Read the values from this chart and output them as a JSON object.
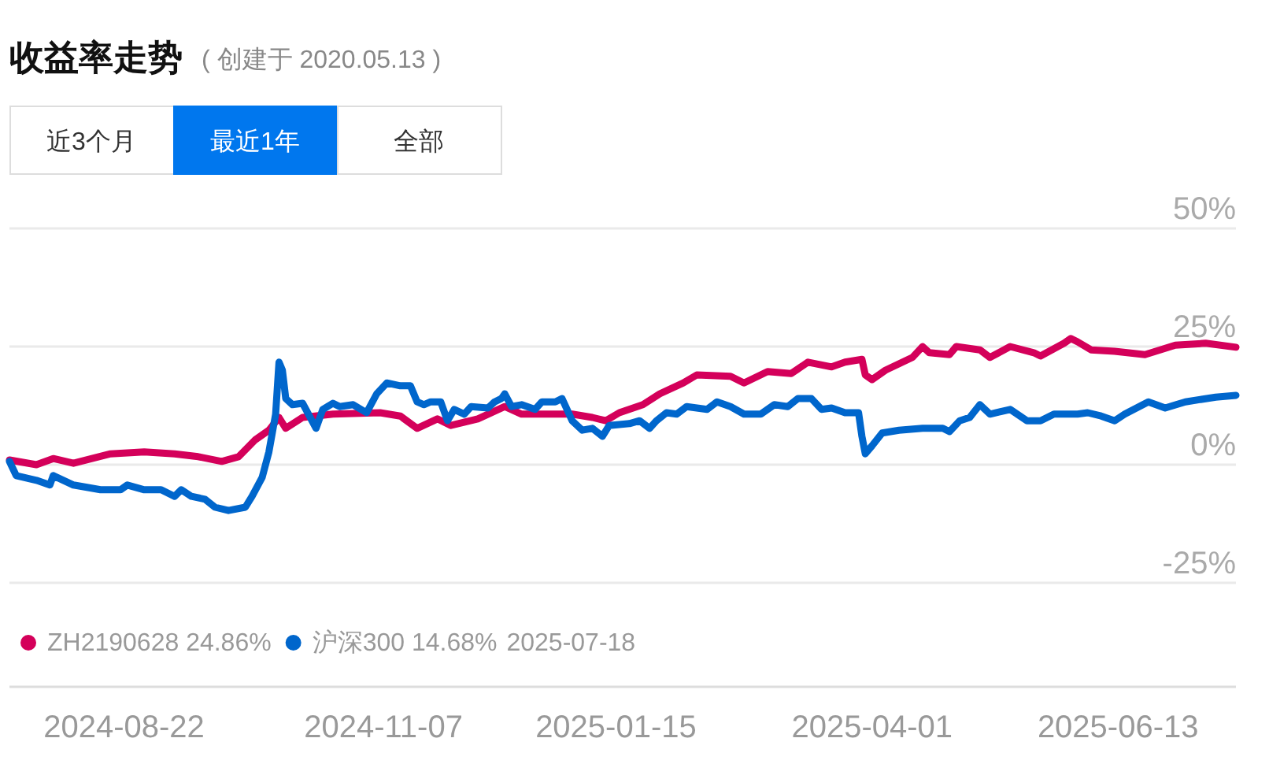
{
  "chart_data": {
    "type": "line",
    "title": "收益率走势",
    "subtitle": "( 创建于 2020.05.13 )",
    "annotations": [
      "近3个月",
      "最近1年",
      "全部",
      "2025-07-18"
    ],
    "xlim": [
      "2024-07-19",
      "2025-07-18"
    ],
    "xticks": [
      "2024-08-22",
      "2024-11-07",
      "2025-01-15",
      "2025-04-01",
      "2025-06-13"
    ],
    "ylim": [
      -25,
      50
    ],
    "yticks": [
      {
        "value": 50,
        "label": "50%"
      },
      {
        "value": 25,
        "label": "25%"
      },
      {
        "value": 0,
        "label": "0%"
      },
      {
        "value": -25,
        "label": "-25%"
      }
    ],
    "grid": "y",
    "legend": "bottom left",
    "marker": "none",
    "line_style": "solid",
    "series": [
      {
        "name": "ZH2190628 24.86%",
        "color": "#d4005a",
        "x": [
          "2024-07-19",
          "2024-07-27",
          "2024-08-01",
          "2024-08-07",
          "2024-08-18",
          "2024-08-28",
          "2024-09-06",
          "2024-09-13",
          "2024-09-20",
          "2024-09-25",
          "2024-09-30",
          "2024-10-04",
          "2024-10-07",
          "2024-10-09",
          "2024-10-14",
          "2024-10-23",
          "2024-11-06",
          "2024-11-12",
          "2024-11-17",
          "2024-11-23",
          "2024-11-27",
          "2024-12-05",
          "2024-12-13",
          "2024-12-18",
          "2024-12-26",
          "2025-01-02",
          "2025-01-08",
          "2025-01-12",
          "2025-01-16",
          "2025-01-23",
          "2025-01-28",
          "2025-02-04",
          "2025-02-08",
          "2025-02-18",
          "2025-02-22",
          "2025-03-01",
          "2025-03-08",
          "2025-03-13",
          "2025-03-20",
          "2025-03-24",
          "2025-03-29",
          "2025-03-30",
          "2025-04-01",
          "2025-04-05",
          "2025-04-13",
          "2025-04-16",
          "2025-04-18",
          "2025-04-24",
          "2025-04-26",
          "2025-05-03",
          "2025-05-06",
          "2025-05-12",
          "2025-05-19",
          "2025-05-21",
          "2025-05-28",
          "2025-05-30",
          "2025-06-01",
          "2025-06-05",
          "2025-06-12",
          "2025-06-21",
          "2025-06-30",
          "2025-07-09",
          "2025-07-18"
        ],
        "values": [
          1,
          0,
          1.3,
          0.3,
          2.3,
          2.7,
          2.3,
          1.7,
          0.7,
          1.7,
          5.3,
          7.3,
          10,
          7.7,
          10,
          10.7,
          11,
          10.3,
          7.7,
          9.7,
          8.3,
          9.7,
          12.3,
          10.7,
          10.7,
          10.7,
          10,
          9.3,
          11,
          12.7,
          15,
          17.3,
          19,
          18.7,
          17.3,
          19.7,
          19.3,
          21.7,
          20.7,
          21.7,
          22.3,
          19,
          18,
          20,
          22.7,
          25,
          23.7,
          23.3,
          25,
          24.3,
          22.7,
          25,
          23.7,
          23,
          25.7,
          26.7,
          26,
          24.3,
          24,
          23.3,
          25.3,
          25.7,
          24.86
        ]
      },
      {
        "name": "沪深300 14.68%",
        "color": "#0066cc",
        "x": [
          "2024-07-19",
          "2024-07-21",
          "2024-07-27",
          "2024-07-31",
          "2024-08-01",
          "2024-08-07",
          "2024-08-15",
          "2024-08-21",
          "2024-08-23",
          "2024-08-28",
          "2024-09-02",
          "2024-09-06",
          "2024-09-08",
          "2024-09-11",
          "2024-09-15",
          "2024-09-18",
          "2024-09-22",
          "2024-09-27",
          "2024-09-29",
          "2024-10-02",
          "2024-10-04",
          "2024-10-06",
          "2024-10-07",
          "2024-10-08",
          "2024-10-09",
          "2024-10-11",
          "2024-10-14",
          "2024-10-18",
          "2024-10-20",
          "2024-10-23",
          "2024-10-25",
          "2024-10-29",
          "2024-11-02",
          "2024-11-05",
          "2024-11-08",
          "2024-11-12",
          "2024-11-15",
          "2024-11-17",
          "2024-11-19",
          "2024-11-21",
          "2024-11-24",
          "2024-11-26",
          "2024-11-28",
          "2024-12-01",
          "2024-12-03",
          "2024-12-08",
          "2024-12-10",
          "2024-12-12",
          "2024-12-13",
          "2024-12-15",
          "2024-12-18",
          "2024-12-22",
          "2024-12-24",
          "2024-12-28",
          "2024-12-30",
          "2025-01-02",
          "2025-01-05",
          "2025-01-08",
          "2025-01-11",
          "2025-01-13",
          "2025-01-19",
          "2025-01-22",
          "2025-01-25",
          "2025-01-27",
          "2025-01-30",
          "2025-02-02",
          "2025-02-05",
          "2025-02-11",
          "2025-02-14",
          "2025-02-18",
          "2025-02-22",
          "2025-02-27",
          "2025-03-03",
          "2025-03-07",
          "2025-03-10",
          "2025-03-14",
          "2025-03-17",
          "2025-03-20",
          "2025-03-24",
          "2025-03-28",
          "2025-03-29",
          "2025-03-30",
          "2025-04-01",
          "2025-04-04",
          "2025-04-09",
          "2025-04-16",
          "2025-04-22",
          "2025-04-24",
          "2025-04-27",
          "2025-04-30",
          "2025-05-03",
          "2025-05-06",
          "2025-05-12",
          "2025-05-17",
          "2025-05-21",
          "2025-05-25",
          "2025-05-29",
          "2025-06-01",
          "2025-06-04",
          "2025-06-08",
          "2025-06-12",
          "2025-06-15",
          "2025-06-22",
          "2025-06-27",
          "2025-07-03",
          "2025-07-12",
          "2025-07-18"
        ],
        "values": [
          0.7,
          -2.3,
          -3.3,
          -4.3,
          -2.3,
          -4.3,
          -5.3,
          -5.3,
          -4.3,
          -5.3,
          -5.3,
          -6.7,
          -5.3,
          -6.7,
          -7.3,
          -9,
          -9.7,
          -9,
          -6.7,
          -2.7,
          2.7,
          10.7,
          21.7,
          20,
          14,
          12.7,
          13,
          7.7,
          11.7,
          13,
          12.3,
          12.7,
          11,
          15,
          17.3,
          16.7,
          16.7,
          13.3,
          12.7,
          13.3,
          13.3,
          9.3,
          11.7,
          10.7,
          12.3,
          12,
          13.3,
          14,
          15,
          12.3,
          12.7,
          11.7,
          13.3,
          13.3,
          14,
          9.3,
          7.3,
          7.7,
          6,
          8.3,
          8.7,
          9.3,
          7.7,
          9.3,
          11,
          10.7,
          12.3,
          11.7,
          13.3,
          12.3,
          10.7,
          10.7,
          12.7,
          12.3,
          14,
          14,
          11.7,
          12,
          11,
          11,
          6,
          2.3,
          4,
          6.7,
          7.3,
          7.7,
          7.7,
          7,
          9.3,
          10,
          12.7,
          10.7,
          11.7,
          9.3,
          9.3,
          10.7,
          10.7,
          10.7,
          11,
          10.3,
          9.3,
          10.7,
          13.3,
          12,
          13.3,
          14.3,
          14.68
        ]
      }
    ]
  }
}
